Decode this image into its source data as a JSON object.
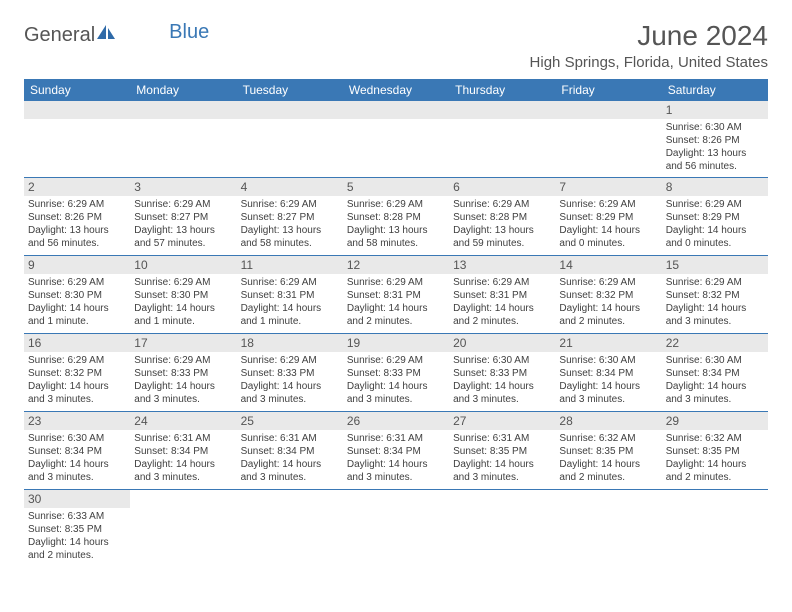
{
  "brand": {
    "part1": "General",
    "part2": "Blue"
  },
  "title": "June 2024",
  "location": "High Springs, Florida, United States",
  "colors": {
    "header_bg": "#3a78b5",
    "header_text": "#ffffff",
    "daynum_bg": "#e9e9e9",
    "border": "#3a78b5",
    "title_color": "#555555",
    "body_text": "#404040"
  },
  "weekdays": [
    "Sunday",
    "Monday",
    "Tuesday",
    "Wednesday",
    "Thursday",
    "Friday",
    "Saturday"
  ],
  "weeks": [
    [
      {
        "n": "",
        "sr": "",
        "ss": "",
        "dl": ""
      },
      {
        "n": "",
        "sr": "",
        "ss": "",
        "dl": ""
      },
      {
        "n": "",
        "sr": "",
        "ss": "",
        "dl": ""
      },
      {
        "n": "",
        "sr": "",
        "ss": "",
        "dl": ""
      },
      {
        "n": "",
        "sr": "",
        "ss": "",
        "dl": ""
      },
      {
        "n": "",
        "sr": "",
        "ss": "",
        "dl": ""
      },
      {
        "n": "1",
        "sr": "Sunrise: 6:30 AM",
        "ss": "Sunset: 8:26 PM",
        "dl": "Daylight: 13 hours and 56 minutes."
      }
    ],
    [
      {
        "n": "2",
        "sr": "Sunrise: 6:29 AM",
        "ss": "Sunset: 8:26 PM",
        "dl": "Daylight: 13 hours and 56 minutes."
      },
      {
        "n": "3",
        "sr": "Sunrise: 6:29 AM",
        "ss": "Sunset: 8:27 PM",
        "dl": "Daylight: 13 hours and 57 minutes."
      },
      {
        "n": "4",
        "sr": "Sunrise: 6:29 AM",
        "ss": "Sunset: 8:27 PM",
        "dl": "Daylight: 13 hours and 58 minutes."
      },
      {
        "n": "5",
        "sr": "Sunrise: 6:29 AM",
        "ss": "Sunset: 8:28 PM",
        "dl": "Daylight: 13 hours and 58 minutes."
      },
      {
        "n": "6",
        "sr": "Sunrise: 6:29 AM",
        "ss": "Sunset: 8:28 PM",
        "dl": "Daylight: 13 hours and 59 minutes."
      },
      {
        "n": "7",
        "sr": "Sunrise: 6:29 AM",
        "ss": "Sunset: 8:29 PM",
        "dl": "Daylight: 14 hours and 0 minutes."
      },
      {
        "n": "8",
        "sr": "Sunrise: 6:29 AM",
        "ss": "Sunset: 8:29 PM",
        "dl": "Daylight: 14 hours and 0 minutes."
      }
    ],
    [
      {
        "n": "9",
        "sr": "Sunrise: 6:29 AM",
        "ss": "Sunset: 8:30 PM",
        "dl": "Daylight: 14 hours and 1 minute."
      },
      {
        "n": "10",
        "sr": "Sunrise: 6:29 AM",
        "ss": "Sunset: 8:30 PM",
        "dl": "Daylight: 14 hours and 1 minute."
      },
      {
        "n": "11",
        "sr": "Sunrise: 6:29 AM",
        "ss": "Sunset: 8:31 PM",
        "dl": "Daylight: 14 hours and 1 minute."
      },
      {
        "n": "12",
        "sr": "Sunrise: 6:29 AM",
        "ss": "Sunset: 8:31 PM",
        "dl": "Daylight: 14 hours and 2 minutes."
      },
      {
        "n": "13",
        "sr": "Sunrise: 6:29 AM",
        "ss": "Sunset: 8:31 PM",
        "dl": "Daylight: 14 hours and 2 minutes."
      },
      {
        "n": "14",
        "sr": "Sunrise: 6:29 AM",
        "ss": "Sunset: 8:32 PM",
        "dl": "Daylight: 14 hours and 2 minutes."
      },
      {
        "n": "15",
        "sr": "Sunrise: 6:29 AM",
        "ss": "Sunset: 8:32 PM",
        "dl": "Daylight: 14 hours and 3 minutes."
      }
    ],
    [
      {
        "n": "16",
        "sr": "Sunrise: 6:29 AM",
        "ss": "Sunset: 8:32 PM",
        "dl": "Daylight: 14 hours and 3 minutes."
      },
      {
        "n": "17",
        "sr": "Sunrise: 6:29 AM",
        "ss": "Sunset: 8:33 PM",
        "dl": "Daylight: 14 hours and 3 minutes."
      },
      {
        "n": "18",
        "sr": "Sunrise: 6:29 AM",
        "ss": "Sunset: 8:33 PM",
        "dl": "Daylight: 14 hours and 3 minutes."
      },
      {
        "n": "19",
        "sr": "Sunrise: 6:29 AM",
        "ss": "Sunset: 8:33 PM",
        "dl": "Daylight: 14 hours and 3 minutes."
      },
      {
        "n": "20",
        "sr": "Sunrise: 6:30 AM",
        "ss": "Sunset: 8:33 PM",
        "dl": "Daylight: 14 hours and 3 minutes."
      },
      {
        "n": "21",
        "sr": "Sunrise: 6:30 AM",
        "ss": "Sunset: 8:34 PM",
        "dl": "Daylight: 14 hours and 3 minutes."
      },
      {
        "n": "22",
        "sr": "Sunrise: 6:30 AM",
        "ss": "Sunset: 8:34 PM",
        "dl": "Daylight: 14 hours and 3 minutes."
      }
    ],
    [
      {
        "n": "23",
        "sr": "Sunrise: 6:30 AM",
        "ss": "Sunset: 8:34 PM",
        "dl": "Daylight: 14 hours and 3 minutes."
      },
      {
        "n": "24",
        "sr": "Sunrise: 6:31 AM",
        "ss": "Sunset: 8:34 PM",
        "dl": "Daylight: 14 hours and 3 minutes."
      },
      {
        "n": "25",
        "sr": "Sunrise: 6:31 AM",
        "ss": "Sunset: 8:34 PM",
        "dl": "Daylight: 14 hours and 3 minutes."
      },
      {
        "n": "26",
        "sr": "Sunrise: 6:31 AM",
        "ss": "Sunset: 8:34 PM",
        "dl": "Daylight: 14 hours and 3 minutes."
      },
      {
        "n": "27",
        "sr": "Sunrise: 6:31 AM",
        "ss": "Sunset: 8:35 PM",
        "dl": "Daylight: 14 hours and 3 minutes."
      },
      {
        "n": "28",
        "sr": "Sunrise: 6:32 AM",
        "ss": "Sunset: 8:35 PM",
        "dl": "Daylight: 14 hours and 2 minutes."
      },
      {
        "n": "29",
        "sr": "Sunrise: 6:32 AM",
        "ss": "Sunset: 8:35 PM",
        "dl": "Daylight: 14 hours and 2 minutes."
      }
    ],
    [
      {
        "n": "30",
        "sr": "Sunrise: 6:33 AM",
        "ss": "Sunset: 8:35 PM",
        "dl": "Daylight: 14 hours and 2 minutes."
      },
      {
        "n": "",
        "sr": "",
        "ss": "",
        "dl": ""
      },
      {
        "n": "",
        "sr": "",
        "ss": "",
        "dl": ""
      },
      {
        "n": "",
        "sr": "",
        "ss": "",
        "dl": ""
      },
      {
        "n": "",
        "sr": "",
        "ss": "",
        "dl": ""
      },
      {
        "n": "",
        "sr": "",
        "ss": "",
        "dl": ""
      },
      {
        "n": "",
        "sr": "",
        "ss": "",
        "dl": ""
      }
    ]
  ]
}
